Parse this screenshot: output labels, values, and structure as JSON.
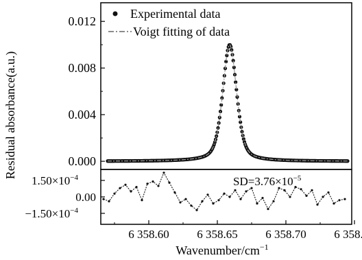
{
  "chart_data": [
    {
      "type": "scatter",
      "panel": "top",
      "xlim": [
        6358.565,
        6358.748
      ],
      "ylim": [
        -0.0007,
        0.0136
      ],
      "yticks": [
        0.0,
        0.004,
        0.008,
        0.012
      ],
      "ytick_labels": [
        "0.000",
        "0.004",
        "0.008",
        "0.012"
      ],
      "ylabel": "Residual absorbance(a.u.)",
      "legend": [
        {
          "name": "Experimental data",
          "marker": "dot"
        },
        {
          "name": "Voigt fitting of data",
          "marker": "dash-dot"
        }
      ],
      "legend_position": "top-left",
      "series": [
        {
          "name": "Experimental data",
          "style": "dots",
          "color": "#111111",
          "model": {
            "profile": "voigt",
            "center": 6358.659,
            "amplitude": 0.01,
            "fwhm": 0.012,
            "baseline": 0.0
          }
        },
        {
          "name": "Voigt fitting of data",
          "style": "dash-dot",
          "color": "#777777",
          "model": {
            "profile": "voigt",
            "center": 6358.659,
            "amplitude": 0.01,
            "fwhm": 0.012,
            "baseline": 0.0
          }
        }
      ]
    },
    {
      "type": "scatter",
      "panel": "bottom",
      "xlim": [
        6358.565,
        6358.748
      ],
      "ylim": [
        -0.00025,
        0.00025
      ],
      "yticks": [
        0.00015,
        0.0,
        -0.00015
      ],
      "ytick_labels": [
        "1.50×10",
        "0.00",
        "−1.50×10"
      ],
      "ytick_exponents": [
        "−4",
        "",
        "−4"
      ],
      "xticks": [
        6358.6,
        6358.65,
        6358.7,
        6358.75
      ],
      "xtick_labels": [
        "6 358.60",
        "6 358.65",
        "6 358.70",
        "6 358.75"
      ],
      "xlabel": "Wavenumber/cm",
      "xlabel_exponent": "−1",
      "annotation": {
        "text": "SD=3.76×10",
        "exponent": "−5"
      },
      "series": [
        {
          "name": "",
          "style": "dots-line",
          "color": "#111111",
          "x": [
            6358.567,
            6358.571,
            6358.575,
            6358.579,
            6358.583,
            6358.587,
            6358.591,
            6358.595,
            6358.599,
            6358.603,
            6358.607,
            6358.611,
            6358.615,
            6358.619,
            6358.623,
            6358.627,
            6358.631,
            6358.635,
            6358.639,
            6358.643,
            6358.647,
            6358.651,
            6358.655,
            6358.659,
            6358.663,
            6358.667,
            6358.671,
            6358.675,
            6358.679,
            6358.683,
            6358.687,
            6358.691,
            6358.695,
            6358.699,
            6358.703,
            6358.707,
            6358.711,
            6358.715,
            6358.719,
            6358.723,
            6358.727,
            6358.731,
            6358.735,
            6358.739,
            6358.743
          ],
          "y": [
            -2e-05,
            -4e-05,
            3e-05,
            8e-05,
            0.00011,
            5e-05,
            9e-05,
            -3e-05,
            0.00012,
            0.00014,
            0.0001,
            0.00022,
            0.00013,
            4e-05,
            -5e-05,
            -2e-05,
            -8e-05,
            -0.00012,
            -4e-05,
            2e-05,
            -6e-05,
            -3e-05,
            3e-05,
            0.0,
            6e-05,
            -2e-05,
            5e-05,
            8e-05,
            -6e-05,
            -1e-05,
            -0.00011,
            -4e-05,
            8e-05,
            6e-05,
            0.0,
            9e-05,
            7e-05,
            1e-05,
            6e-05,
            -7e-05,
            0.0,
            4e-05,
            -6e-05,
            -3e-05,
            -2e-05
          ]
        }
      ]
    }
  ]
}
